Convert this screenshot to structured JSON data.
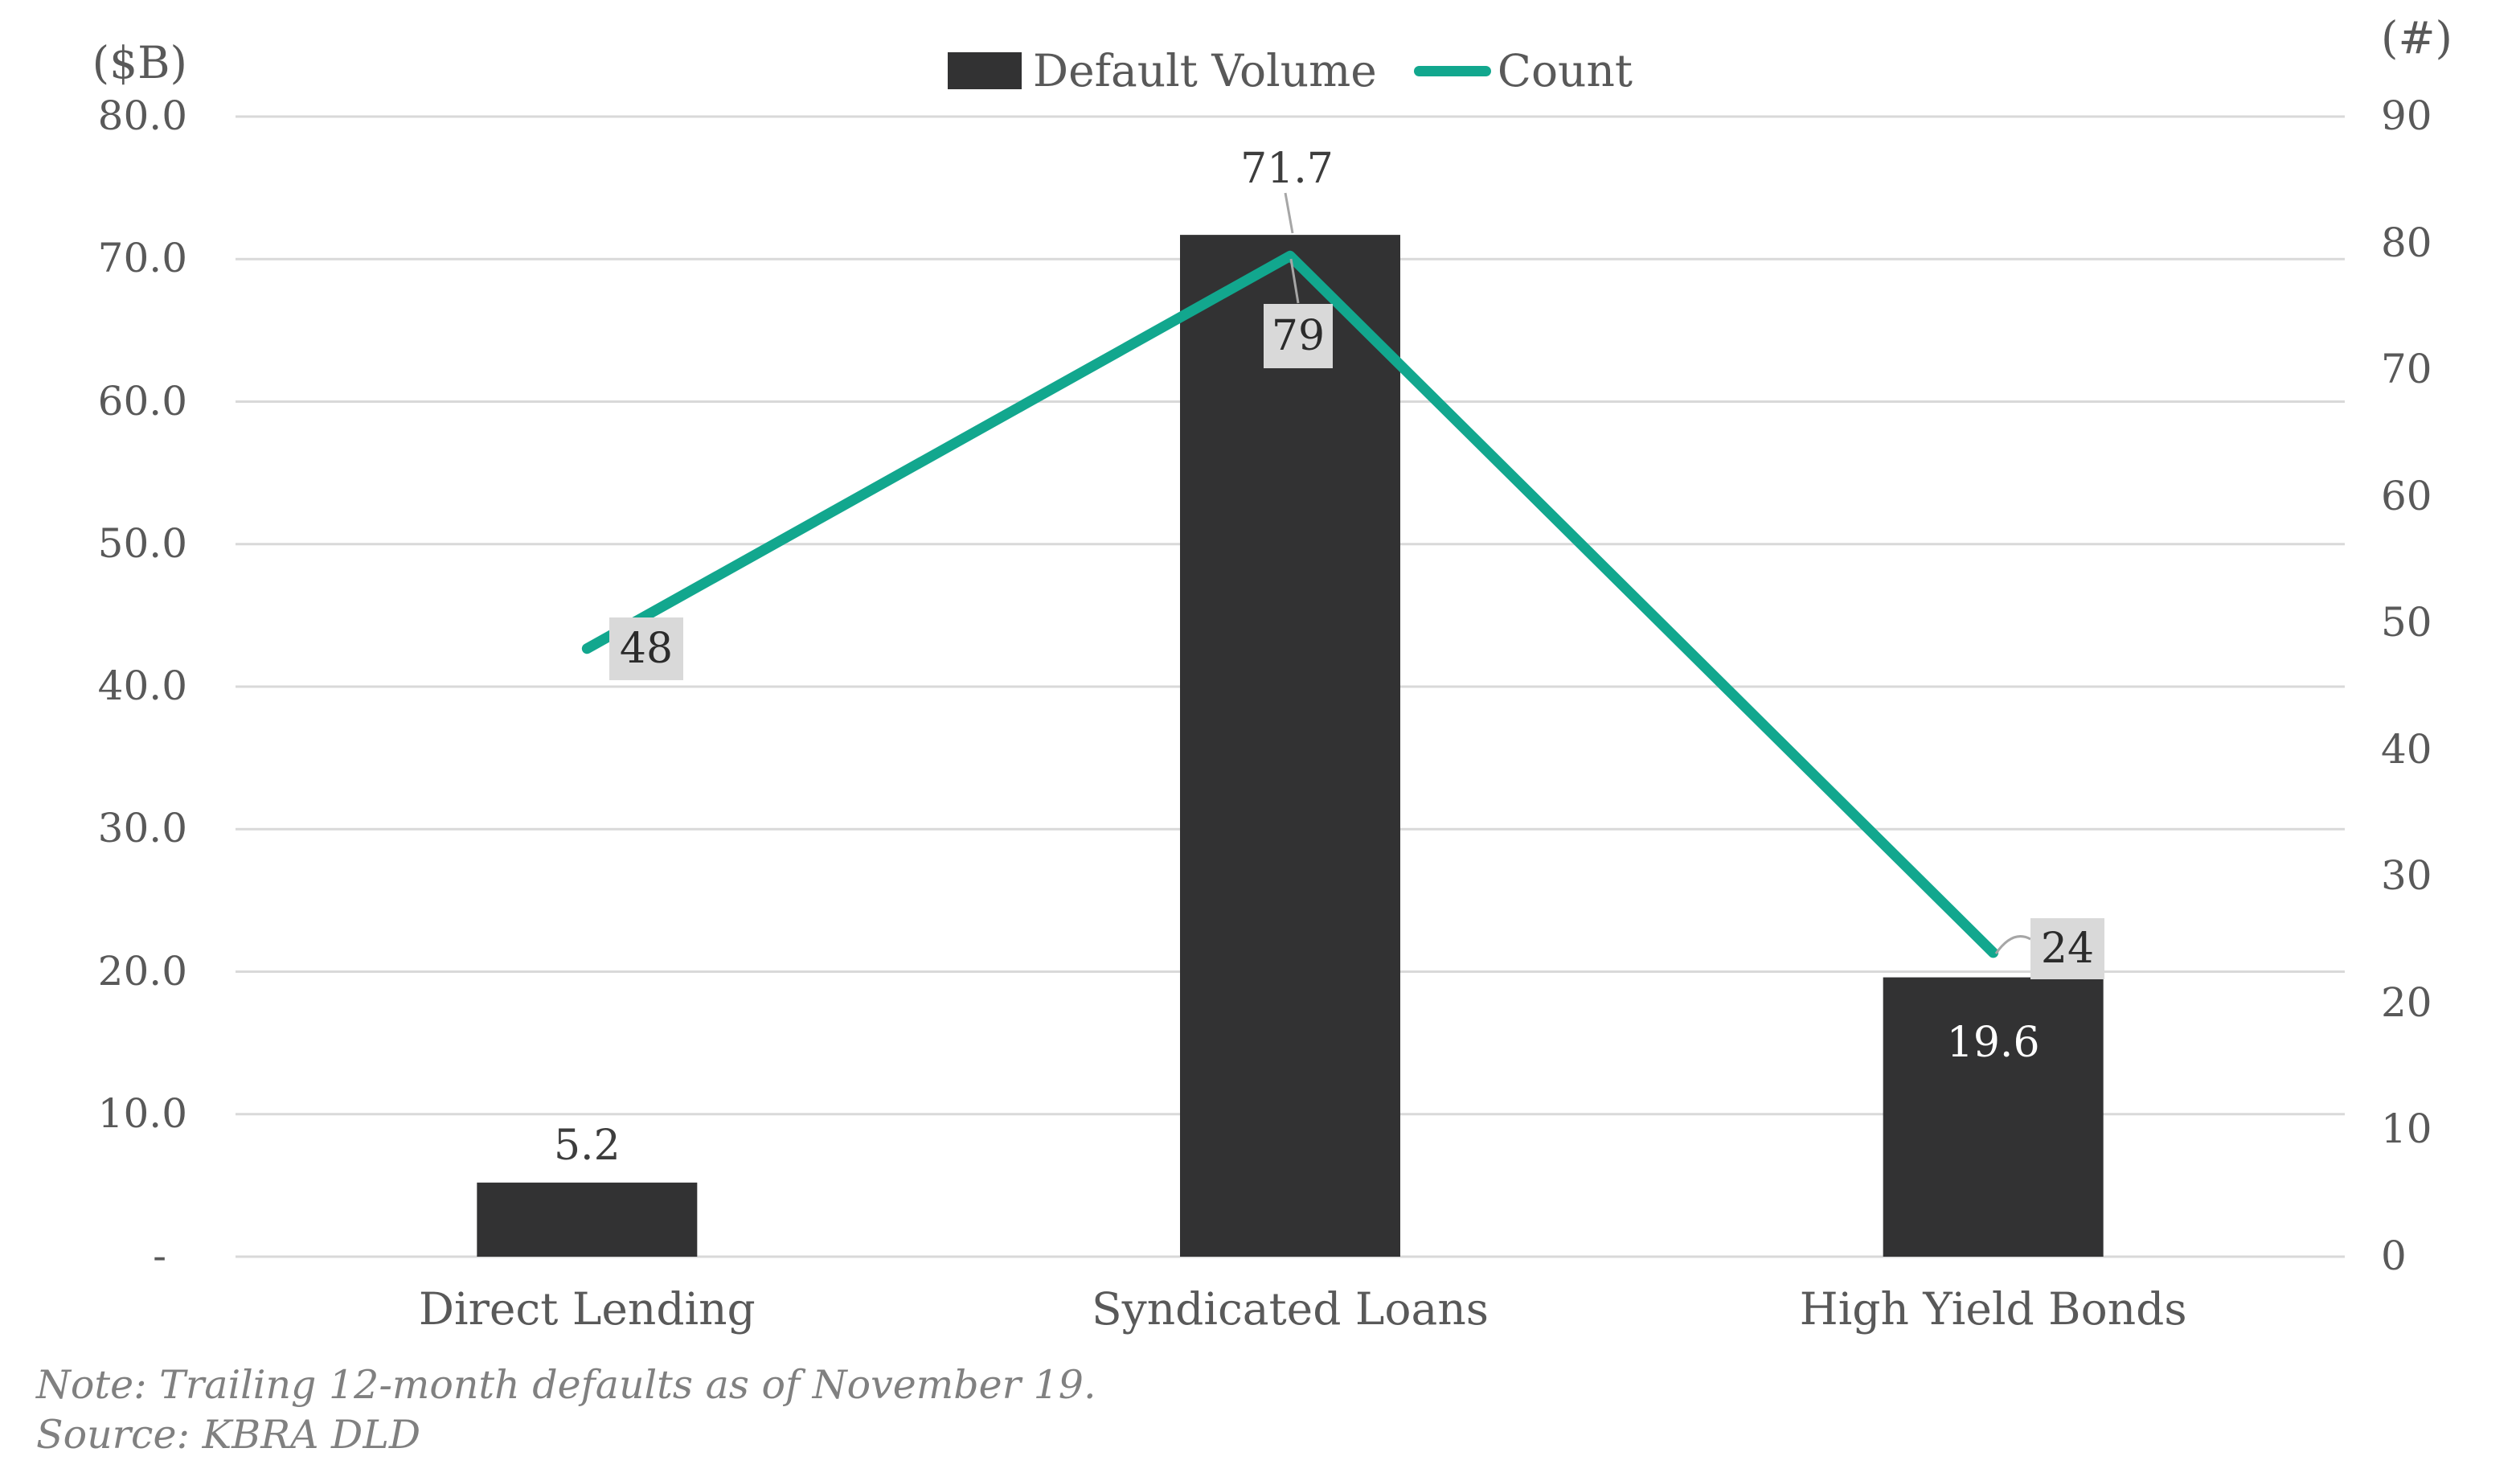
{
  "chart_data": {
    "type": "bar",
    "subtype": "combo-bar-line-dual-axis",
    "categories": [
      "Direct Lending",
      "Syndicated Loans",
      "High Yield Bonds"
    ],
    "series": [
      {
        "name": "Default Volume",
        "type": "bar",
        "axis": "left",
        "values": [
          5.2,
          71.7,
          19.6
        ],
        "labels": [
          "5.2",
          "71.7",
          "19.6"
        ],
        "label_placement": [
          "above",
          "above-leader",
          "inside-white"
        ],
        "color": "#323233"
      },
      {
        "name": "Count",
        "type": "line",
        "axis": "right",
        "values": [
          48,
          79,
          24
        ],
        "labels": [
          "48",
          "79",
          "24"
        ],
        "label_placement": [
          "boxed-right",
          "boxed-below-leader",
          "boxed-right-leader"
        ],
        "color": "#12A78E"
      }
    ],
    "left_axis": {
      "title": "($B)",
      "min": 0,
      "max": 80,
      "step": 10,
      "tick_labels": [
        "-",
        "10.0",
        "20.0",
        "30.0",
        "40.0",
        "50.0",
        "60.0",
        "70.0",
        "80.0"
      ]
    },
    "right_axis": {
      "title": "(#)",
      "min": 0,
      "max": 90,
      "step": 10,
      "tick_labels": [
        "0",
        "10",
        "20",
        "30",
        "40",
        "50",
        "60",
        "70",
        "80",
        "90"
      ]
    },
    "grid": true,
    "legend_position": "top-center"
  },
  "footnote": {
    "note": "Note: Trailing 12-month defaults as of November 19.",
    "source": "Source: KBRA DLD"
  },
  "colors": {
    "bar": "#323233",
    "line": "#12A78E",
    "grid": "#D9D9D9",
    "label_box": "#D9D9D9",
    "leader": "#A6A6A6",
    "axis_text": "#595959",
    "note_text": "#808080"
  }
}
